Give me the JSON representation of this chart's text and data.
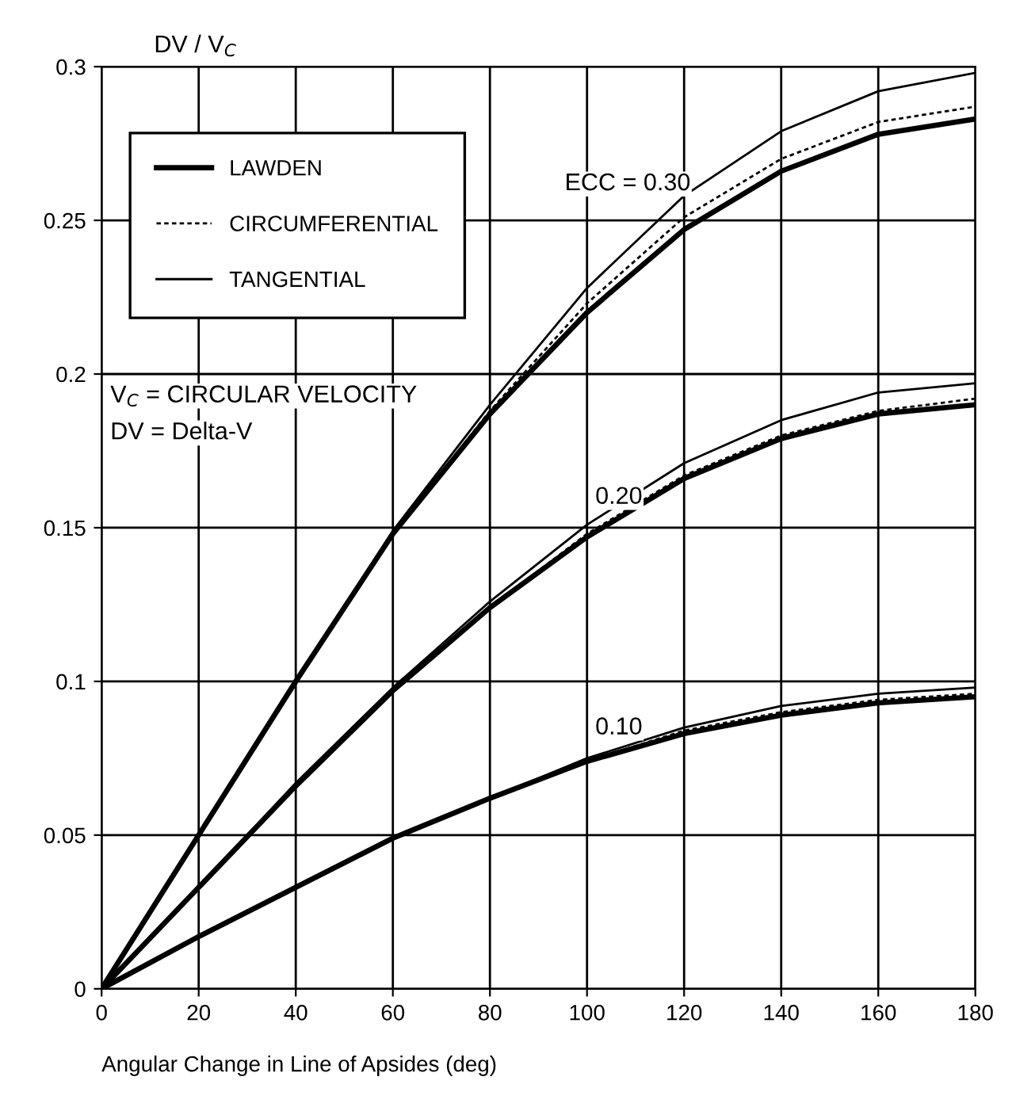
{
  "chart_data": {
    "type": "line",
    "xlabel": "Angular Change in Line of Apsides (deg)",
    "ylabel": "DV / V$_{C}$",
    "x": [
      0,
      20,
      40,
      60,
      80,
      100,
      120,
      140,
      160,
      180
    ],
    "series": [
      {
        "name": "LAWDEN",
        "color": "#000000",
        "line_style": "solid",
        "values": [
          0,
          0.05,
          0.1,
          0.148,
          0.187,
          0.22,
          0.247,
          0.266,
          0.278,
          0.283
        ]
      },
      {
        "name": "CIRCUMFERENTIAL",
        "color": "#000000",
        "line_style": "dotted",
        "values": [
          0,
          0.05,
          0.1,
          0.148,
          0.188,
          0.223,
          0.251,
          0.27,
          0.282,
          0.287
        ]
      },
      {
        "name": "TANGENTIAL",
        "color": "#000000",
        "line_style": "solid",
        "values": [
          0,
          0.05,
          0.1,
          0.149,
          0.19,
          0.228,
          0.258,
          0.279,
          0.292,
          0.298
        ]
      },
      {
        "color": "#000000",
        "line_style": "solid",
        "values": [
          0,
          0.033,
          0.066,
          0.097,
          0.124,
          0.147,
          0.166,
          0.179,
          0.187,
          0.19
        ]
      },
      {
        "color": "#000000",
        "line_style": "dotted",
        "values": [
          0,
          0.033,
          0.066,
          0.097,
          0.124,
          0.148,
          0.167,
          0.18,
          0.188,
          0.192
        ]
      },
      {
        "color": "#000000",
        "line_style": "solid",
        "values": [
          0,
          0.033,
          0.067,
          0.098,
          0.126,
          0.151,
          0.171,
          0.185,
          0.194,
          0.197
        ]
      },
      {
        "color": "#000000",
        "line_style": "solid",
        "values": [
          0,
          0.017,
          0.033,
          0.049,
          0.062,
          0.074,
          0.083,
          0.089,
          0.093,
          0.095
        ]
      },
      {
        "color": "#000000",
        "line_style": "dotted",
        "values": [
          0,
          0.017,
          0.033,
          0.049,
          0.062,
          0.074,
          0.084,
          0.09,
          0.094,
          0.096
        ]
      },
      {
        "color": "#000000",
        "line_style": "solid",
        "values": [
          0,
          0.017,
          0.033,
          0.049,
          0.062,
          0.075,
          0.085,
          0.092,
          0.096,
          0.098
        ]
      }
    ],
    "xlim": [
      0,
      180
    ],
    "xticks": [
      0,
      20,
      40,
      60,
      80,
      100,
      120,
      140,
      160,
      180
    ],
    "ylim": [
      0,
      0.3
    ],
    "yticks": [
      0,
      0.05,
      0.1,
      0.15,
      0.2,
      0.25,
      0.3
    ],
    "grid": true,
    "legend": "top left",
    "annotations": [
      "ECC = 0.30",
      "0.20",
      "0.10",
      "V$_{C}$ = CIRCULAR VELOCITY",
      "DV = Delta-V"
    ]
  }
}
